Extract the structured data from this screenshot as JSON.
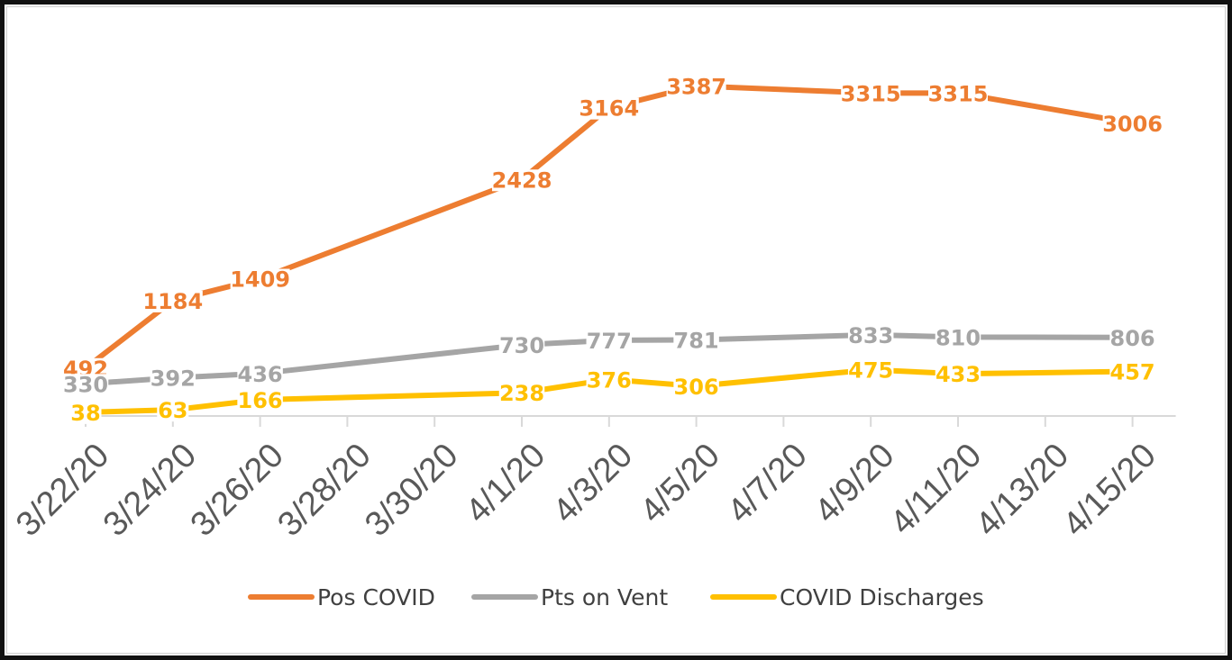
{
  "chart_data": {
    "type": "line",
    "title": "",
    "xlabel": "",
    "ylabel": "",
    "categories": [
      "3/22/20",
      "3/24/20",
      "3/26/20",
      "3/28/20",
      "3/30/20",
      "4/1/20",
      "4/3/20",
      "4/5/20",
      "4/7/20",
      "4/9/20",
      "4/11/20",
      "4/13/20",
      "4/15/20"
    ],
    "x": [
      "3/22/20",
      "3/24/20",
      "3/26/20",
      "4/1/20",
      "4/3/20",
      "4/5/20",
      "4/7/20",
      "4/9/20",
      "4/11/20",
      "4/15/20"
    ],
    "ylim": [
      0,
      3500
    ],
    "grid": false,
    "legend_position": "bottom",
    "series": [
      {
        "name": "Pos COVID",
        "color": "#ED7D31",
        "values": [
          492,
          1184,
          1409,
          2428,
          3164,
          3387,
          3315,
          3315,
          3006
        ],
        "x": [
          "3/22/20",
          "3/24/20",
          "3/26/20",
          "4/1/20",
          "4/3/20",
          "4/5/20",
          "4/9/20",
          "4/11/20",
          "4/15/20"
        ]
      },
      {
        "name": "Pts on Vent",
        "color": "#A5A5A5",
        "values": [
          330,
          392,
          436,
          730,
          777,
          781,
          833,
          810,
          806
        ],
        "x": [
          "3/22/20",
          "3/24/20",
          "3/26/20",
          "4/1/20",
          "4/3/20",
          "4/5/20",
          "4/9/20",
          "4/11/20",
          "4/15/20"
        ]
      },
      {
        "name": "COVID Discharges",
        "color": "#FFC000",
        "values": [
          38,
          63,
          166,
          238,
          376,
          306,
          475,
          433,
          457
        ],
        "x": [
          "3/22/20",
          "3/24/20",
          "3/26/20",
          "4/1/20",
          "4/3/20",
          "4/5/20",
          "4/9/20",
          "4/11/20",
          "4/15/20"
        ]
      }
    ]
  }
}
